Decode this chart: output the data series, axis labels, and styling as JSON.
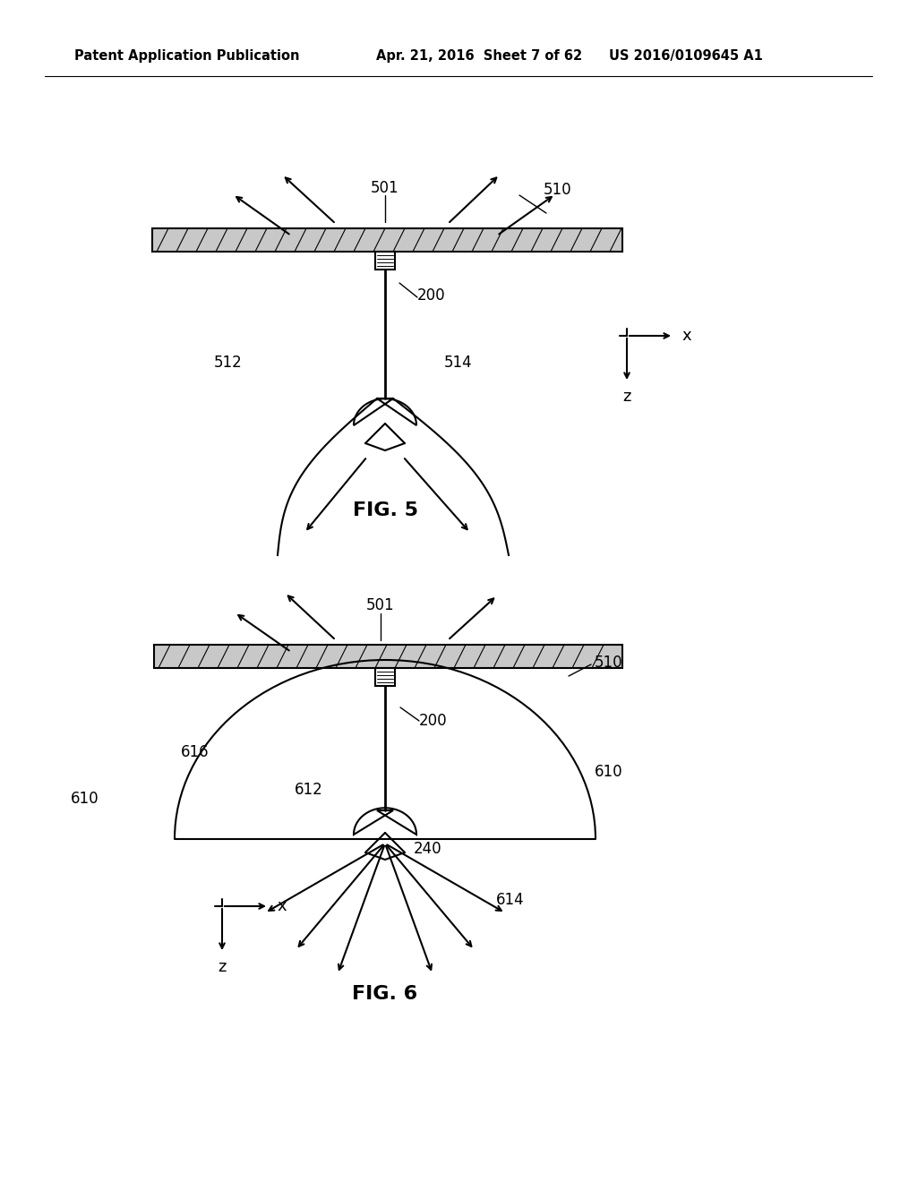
{
  "bg_color": "#ffffff",
  "header_left": "Patent Application Publication",
  "header_mid": "Apr. 21, 2016  Sheet 7 of 62",
  "header_right": "US 2016/0109645 A1",
  "fig5_label": "FIG. 5",
  "fig6_label": "FIG. 6",
  "black": "#000000",
  "light_gray": "#c8c8c8",
  "lw_main": 1.5,
  "lw_hatch": 0.8,
  "lw_connector": 0.7
}
